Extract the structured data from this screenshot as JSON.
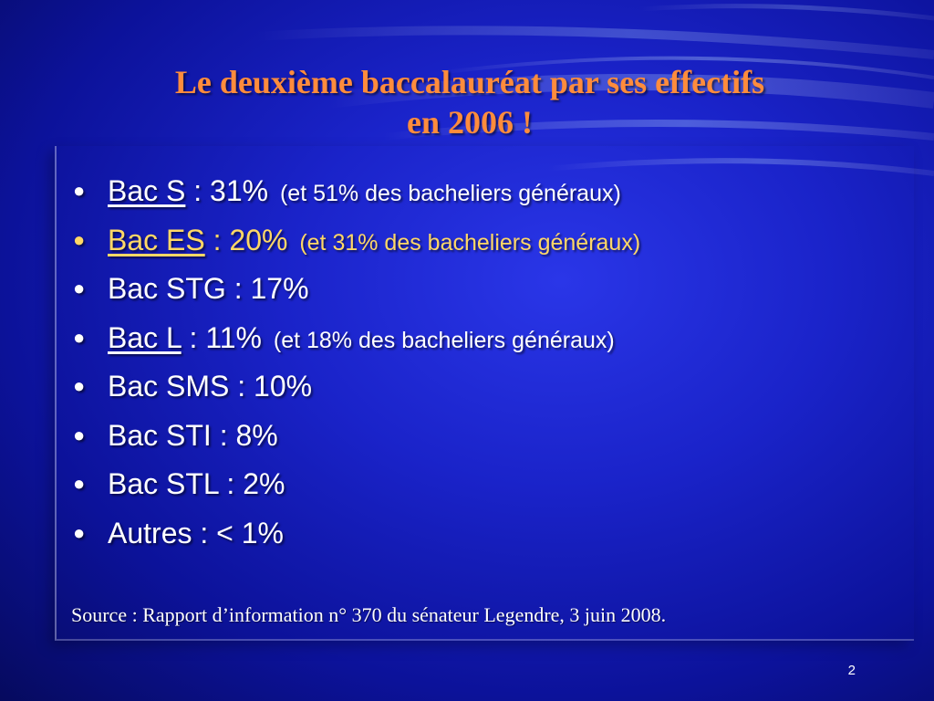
{
  "slide": {
    "title_line1": "Le deuxième baccalauréat par ses effectifs",
    "title_line2": "en 2006 !",
    "bullet_glyph": "●",
    "items": [
      {
        "name": "Bac S",
        "value": " : 31%",
        "note": "(et 51% des bacheliers généraux)"
      },
      {
        "name": "Bac ES",
        "value": " : 20%",
        "note": "(et 31% des bacheliers généraux)"
      },
      {
        "name": "Bac STG",
        "value": " : 17%",
        "note": ""
      },
      {
        "name": "Bac L",
        "value": " : 11%",
        "note": "(et 18% des bacheliers généraux)"
      },
      {
        "name": "Bac SMS",
        "value": " : 10%",
        "note": ""
      },
      {
        "name": "Bac STI",
        "value": " : 8%",
        "note": ""
      },
      {
        "name": "Bac STL",
        "value": " : 2%",
        "note": ""
      },
      {
        "name": "Autres",
        "value": " : < 1%",
        "note": ""
      }
    ],
    "source": "Source : Rapport d’information  n°  370 du sénateur Legendre, 3 juin 2008.",
    "page_number": "2"
  },
  "colors": {
    "title": "#ff8c3c",
    "highlight": "#ffd866",
    "text": "#ffffff",
    "background": "#1a23c9"
  }
}
